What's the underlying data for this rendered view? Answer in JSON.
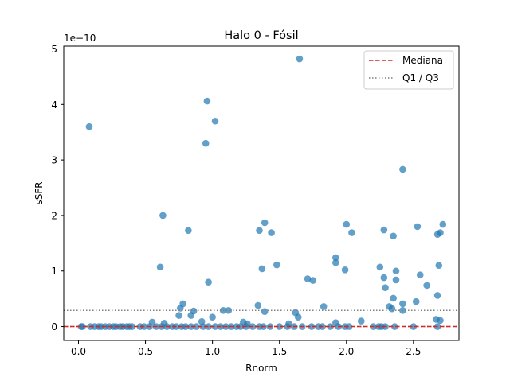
{
  "chart_data": {
    "type": "scatter",
    "title": "Halo 0 - Fósil",
    "xlabel": "Rnorm",
    "ylabel": "sSFR",
    "y_offset_label": "1e−10",
    "xlim": [
      -0.11,
      2.84
    ],
    "ylim": [
      -0.25,
      5.05
    ],
    "x_ticks": [
      0.0,
      0.5,
      1.0,
      1.5,
      2.0,
      2.5
    ],
    "x_tick_labels": [
      "0.0",
      "0.5",
      "1.0",
      "1.5",
      "2.0",
      "2.5"
    ],
    "y_ticks": [
      0,
      1,
      2,
      3,
      4,
      5
    ],
    "y_tick_labels": [
      "0",
      "1",
      "2",
      "3",
      "4",
      "5"
    ],
    "grid": false,
    "legend_position": "top-right",
    "point_color": "#1f77b4",
    "point_opacity": 0.7,
    "median": {
      "label": "Mediana",
      "value": 0.0,
      "color": "#d62728",
      "style": "dashed"
    },
    "quartiles": {
      "label": "Q1 / Q3",
      "values": [
        0.0,
        0.29
      ],
      "color": "#808080",
      "style": "dotted"
    },
    "points": [
      {
        "x": 0.08,
        "y": 3.6
      },
      {
        "x": 0.96,
        "y": 4.06
      },
      {
        "x": 1.65,
        "y": 4.82
      },
      {
        "x": 1.02,
        "y": 3.7
      },
      {
        "x": 0.95,
        "y": 3.3
      },
      {
        "x": 2.42,
        "y": 2.83
      },
      {
        "x": 0.63,
        "y": 2.0
      },
      {
        "x": 0.82,
        "y": 1.73
      },
      {
        "x": 1.39,
        "y": 1.87
      },
      {
        "x": 1.35,
        "y": 1.73
      },
      {
        "x": 1.44,
        "y": 1.69
      },
      {
        "x": 2.0,
        "y": 1.84
      },
      {
        "x": 2.04,
        "y": 1.69
      },
      {
        "x": 2.28,
        "y": 1.74
      },
      {
        "x": 2.35,
        "y": 1.63
      },
      {
        "x": 2.53,
        "y": 1.8
      },
      {
        "x": 2.68,
        "y": 1.66
      },
      {
        "x": 2.7,
        "y": 1.69
      },
      {
        "x": 2.72,
        "y": 1.84
      },
      {
        "x": 0.61,
        "y": 1.07
      },
      {
        "x": 0.97,
        "y": 0.8
      },
      {
        "x": 1.37,
        "y": 1.04
      },
      {
        "x": 1.48,
        "y": 1.11
      },
      {
        "x": 1.71,
        "y": 0.86
      },
      {
        "x": 1.75,
        "y": 0.83
      },
      {
        "x": 1.92,
        "y": 1.24
      },
      {
        "x": 1.92,
        "y": 1.15
      },
      {
        "x": 1.99,
        "y": 1.02
      },
      {
        "x": 2.25,
        "y": 1.07
      },
      {
        "x": 2.28,
        "y": 0.88
      },
      {
        "x": 2.29,
        "y": 0.7
      },
      {
        "x": 2.37,
        "y": 1.0
      },
      {
        "x": 2.37,
        "y": 0.84
      },
      {
        "x": 2.55,
        "y": 0.93
      },
      {
        "x": 2.6,
        "y": 0.74
      },
      {
        "x": 2.69,
        "y": 1.1
      },
      {
        "x": 2.68,
        "y": 0.56
      },
      {
        "x": 2.35,
        "y": 0.51
      },
      {
        "x": 2.42,
        "y": 0.41
      },
      {
        "x": 2.52,
        "y": 0.45
      },
      {
        "x": 2.32,
        "y": 0.36
      },
      {
        "x": 2.34,
        "y": 0.32
      },
      {
        "x": 2.42,
        "y": 0.29
      },
      {
        "x": 0.78,
        "y": 0.41
      },
      {
        "x": 0.76,
        "y": 0.33
      },
      {
        "x": 0.86,
        "y": 0.28
      },
      {
        "x": 0.84,
        "y": 0.2
      },
      {
        "x": 0.75,
        "y": 0.2
      },
      {
        "x": 1.08,
        "y": 0.29
      },
      {
        "x": 1.12,
        "y": 0.29
      },
      {
        "x": 1.34,
        "y": 0.38
      },
      {
        "x": 1.39,
        "y": 0.27
      },
      {
        "x": 1.62,
        "y": 0.25
      },
      {
        "x": 1.64,
        "y": 0.17
      },
      {
        "x": 1.83,
        "y": 0.36
      },
      {
        "x": 1.0,
        "y": 0.17
      },
      {
        "x": 0.55,
        "y": 0.08
      },
      {
        "x": 0.64,
        "y": 0.06
      },
      {
        "x": 0.92,
        "y": 0.09
      },
      {
        "x": 1.23,
        "y": 0.08
      },
      {
        "x": 1.26,
        "y": 0.05
      },
      {
        "x": 1.57,
        "y": 0.05
      },
      {
        "x": 1.92,
        "y": 0.07
      },
      {
        "x": 2.11,
        "y": 0.1
      },
      {
        "x": 2.67,
        "y": 0.13
      },
      {
        "x": 2.7,
        "y": 0.11
      },
      {
        "x": 0.02,
        "y": 0.0
      },
      {
        "x": 0.03,
        "y": 0.0
      },
      {
        "x": 0.09,
        "y": 0.0
      },
      {
        "x": 0.12,
        "y": 0.0
      },
      {
        "x": 0.15,
        "y": 0.0
      },
      {
        "x": 0.17,
        "y": 0.0
      },
      {
        "x": 0.2,
        "y": 0.0
      },
      {
        "x": 0.23,
        "y": 0.0
      },
      {
        "x": 0.26,
        "y": 0.0
      },
      {
        "x": 0.28,
        "y": 0.0
      },
      {
        "x": 0.31,
        "y": 0.0
      },
      {
        "x": 0.33,
        "y": 0.0
      },
      {
        "x": 0.36,
        "y": 0.0
      },
      {
        "x": 0.38,
        "y": 0.0
      },
      {
        "x": 0.4,
        "y": 0.0
      },
      {
        "x": 0.46,
        "y": 0.0
      },
      {
        "x": 0.49,
        "y": 0.0
      },
      {
        "x": 0.53,
        "y": 0.0
      },
      {
        "x": 0.58,
        "y": 0.0
      },
      {
        "x": 0.62,
        "y": 0.0
      },
      {
        "x": 0.66,
        "y": 0.0
      },
      {
        "x": 0.7,
        "y": 0.0
      },
      {
        "x": 0.73,
        "y": 0.0
      },
      {
        "x": 0.77,
        "y": 0.0
      },
      {
        "x": 0.8,
        "y": 0.0
      },
      {
        "x": 0.84,
        "y": 0.0
      },
      {
        "x": 0.88,
        "y": 0.0
      },
      {
        "x": 0.93,
        "y": 0.0
      },
      {
        "x": 0.97,
        "y": 0.0
      },
      {
        "x": 1.02,
        "y": 0.0
      },
      {
        "x": 1.06,
        "y": 0.0
      },
      {
        "x": 1.1,
        "y": 0.0
      },
      {
        "x": 1.14,
        "y": 0.0
      },
      {
        "x": 1.18,
        "y": 0.0
      },
      {
        "x": 1.21,
        "y": 0.0
      },
      {
        "x": 1.25,
        "y": 0.0
      },
      {
        "x": 1.3,
        "y": 0.0
      },
      {
        "x": 1.35,
        "y": 0.0
      },
      {
        "x": 1.38,
        "y": 0.0
      },
      {
        "x": 1.43,
        "y": 0.0
      },
      {
        "x": 1.5,
        "y": 0.0
      },
      {
        "x": 1.56,
        "y": 0.0
      },
      {
        "x": 1.61,
        "y": 0.0
      },
      {
        "x": 1.67,
        "y": 0.0
      },
      {
        "x": 1.74,
        "y": 0.0
      },
      {
        "x": 1.79,
        "y": 0.0
      },
      {
        "x": 1.82,
        "y": 0.0
      },
      {
        "x": 1.88,
        "y": 0.0
      },
      {
        "x": 1.94,
        "y": 0.0
      },
      {
        "x": 1.99,
        "y": 0.0
      },
      {
        "x": 2.02,
        "y": 0.0
      },
      {
        "x": 2.2,
        "y": 0.0
      },
      {
        "x": 2.24,
        "y": 0.0
      },
      {
        "x": 2.26,
        "y": 0.0
      },
      {
        "x": 2.29,
        "y": 0.0
      },
      {
        "x": 2.36,
        "y": 0.0
      },
      {
        "x": 2.5,
        "y": 0.0
      },
      {
        "x": 2.68,
        "y": 0.0
      }
    ]
  }
}
